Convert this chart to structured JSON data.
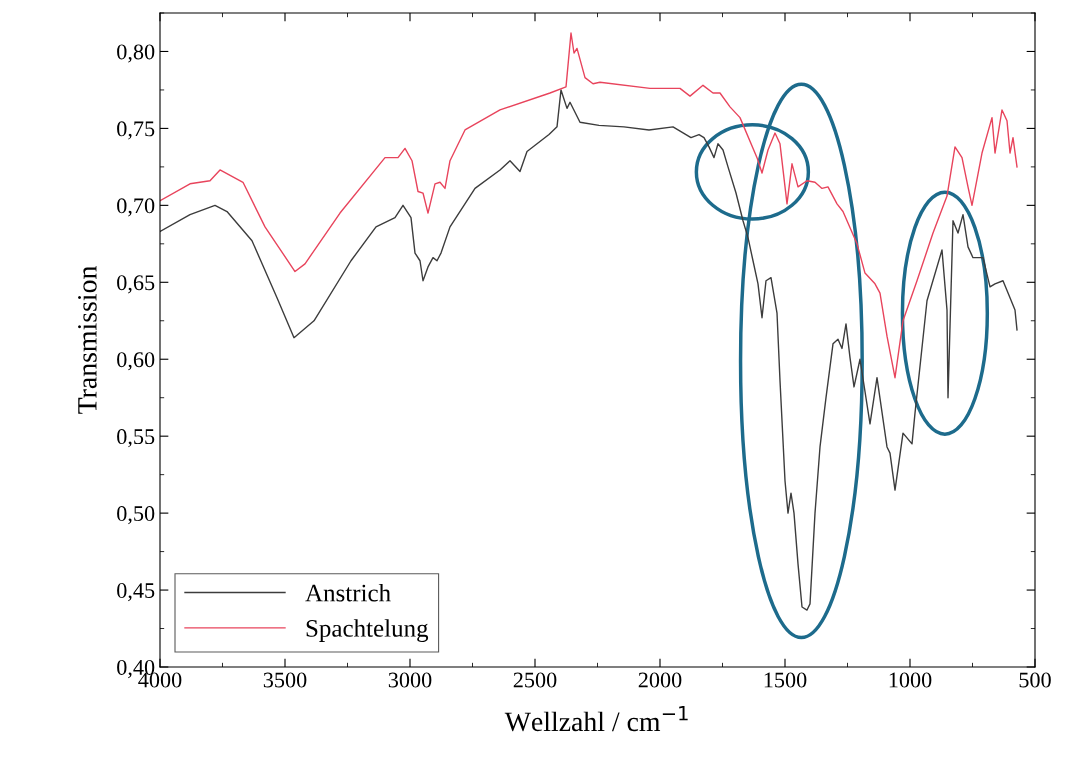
{
  "chart_data": {
    "type": "line",
    "xlabel": "Wellzahl / cm$^{−1}$",
    "ylabel": "Transmission",
    "xlim": [
      4000,
      500
    ],
    "ylim": [
      0.4,
      0.825
    ],
    "xticks": [
      4000,
      3500,
      3000,
      2500,
      2000,
      1500,
      1000,
      500
    ],
    "yticks": [
      {
        "value": 0.4,
        "label": "0,40"
      },
      {
        "value": 0.45,
        "label": "0,45"
      },
      {
        "value": 0.5,
        "label": "0,50"
      },
      {
        "value": 0.55,
        "label": "0,55"
      },
      {
        "value": 0.6,
        "label": "0,60"
      },
      {
        "value": 0.65,
        "label": "0,65"
      },
      {
        "value": 0.7,
        "label": "0,70"
      },
      {
        "value": 0.75,
        "label": "0,75"
      },
      {
        "value": 0.8,
        "label": "0,80"
      }
    ],
    "grid": false,
    "legend": "bottom left",
    "marker": "none",
    "line_style": "solid",
    "series": [
      {
        "name": "Anstrich",
        "color": "#3c3c3c",
        "x": [
          4000,
          3880,
          3780,
          3732,
          3632,
          3532,
          3464,
          3384,
          3236,
          3136,
          3060,
          3028,
          2996,
          2980,
          2960,
          2948,
          2928,
          2908,
          2892,
          2876,
          2840,
          2740,
          2640,
          2600,
          2560,
          2532,
          2444,
          2412,
          2396,
          2372,
          2360,
          2320,
          2244,
          2144,
          2044,
          1948,
          1876,
          1844,
          1824,
          1804,
          1784,
          1768,
          1748,
          1728,
          1696,
          1668,
          1648,
          1628,
          1608,
          1592,
          1576,
          1556,
          1532,
          1520,
          1500,
          1488,
          1476,
          1464,
          1448,
          1432,
          1412,
          1400,
          1380,
          1360,
          1336,
          1308,
          1288,
          1272,
          1256,
          1240,
          1224,
          1200,
          1160,
          1132,
          1092,
          1080,
          1060,
          1028,
          992,
          980,
          932,
          872,
          852,
          848,
          828,
          808,
          788,
          768,
          748,
          708,
          680,
          660,
          628,
          600,
          580,
          572
        ],
        "values": [
          0.683,
          0.694,
          0.7,
          0.696,
          0.677,
          0.64,
          0.614,
          0.625,
          0.664,
          0.686,
          0.692,
          0.7,
          0.692,
          0.669,
          0.664,
          0.651,
          0.66,
          0.666,
          0.664,
          0.669,
          0.686,
          0.711,
          0.723,
          0.729,
          0.722,
          0.735,
          0.746,
          0.751,
          0.775,
          0.763,
          0.767,
          0.754,
          0.752,
          0.751,
          0.749,
          0.751,
          0.744,
          0.746,
          0.744,
          0.738,
          0.731,
          0.74,
          0.736,
          0.725,
          0.708,
          0.69,
          0.679,
          0.664,
          0.649,
          0.627,
          0.651,
          0.653,
          0.63,
          0.586,
          0.521,
          0.5,
          0.513,
          0.5,
          0.467,
          0.439,
          0.437,
          0.441,
          0.5,
          0.543,
          0.575,
          0.61,
          0.613,
          0.607,
          0.623,
          0.601,
          0.582,
          0.6,
          0.558,
          0.588,
          0.543,
          0.539,
          0.515,
          0.552,
          0.545,
          0.565,
          0.638,
          0.671,
          0.632,
          0.575,
          0.69,
          0.682,
          0.694,
          0.673,
          0.666,
          0.666,
          0.647,
          0.649,
          0.651,
          0.64,
          0.632,
          0.619
        ]
      },
      {
        "name": "Spachtelung",
        "color": "#e8445c",
        "x": [
          4000,
          3880,
          3800,
          3760,
          3668,
          3580,
          3460,
          3420,
          3280,
          3100,
          3048,
          3020,
          2992,
          2968,
          2948,
          2928,
          2900,
          2880,
          2860,
          2840,
          2780,
          2640,
          2440,
          2376,
          2356,
          2344,
          2332,
          2300,
          2268,
          2240,
          2040,
          1920,
          1880,
          1828,
          1788,
          1760,
          1720,
          1680,
          1612,
          1592,
          1568,
          1540,
          1520,
          1492,
          1472,
          1448,
          1412,
          1380,
          1352,
          1328,
          1292,
          1268,
          1212,
          1180,
          1140,
          1120,
          1092,
          1060,
          1028,
          972,
          908,
          852,
          820,
          792,
          768,
          752,
          712,
          672,
          660,
          632,
          612,
          600,
          588,
          572
        ],
        "values": [
          0.703,
          0.714,
          0.716,
          0.723,
          0.715,
          0.686,
          0.657,
          0.662,
          0.695,
          0.731,
          0.731,
          0.737,
          0.729,
          0.709,
          0.708,
          0.695,
          0.714,
          0.715,
          0.711,
          0.729,
          0.749,
          0.762,
          0.773,
          0.777,
          0.812,
          0.799,
          0.802,
          0.783,
          0.779,
          0.78,
          0.776,
          0.776,
          0.771,
          0.778,
          0.773,
          0.773,
          0.764,
          0.757,
          0.731,
          0.721,
          0.736,
          0.747,
          0.74,
          0.701,
          0.727,
          0.712,
          0.716,
          0.715,
          0.711,
          0.712,
          0.701,
          0.696,
          0.675,
          0.656,
          0.649,
          0.643,
          0.615,
          0.588,
          0.625,
          0.651,
          0.682,
          0.706,
          0.738,
          0.731,
          0.712,
          0.7,
          0.734,
          0.757,
          0.734,
          0.762,
          0.755,
          0.734,
          0.744,
          0.725
        ]
      }
    ]
  }
}
